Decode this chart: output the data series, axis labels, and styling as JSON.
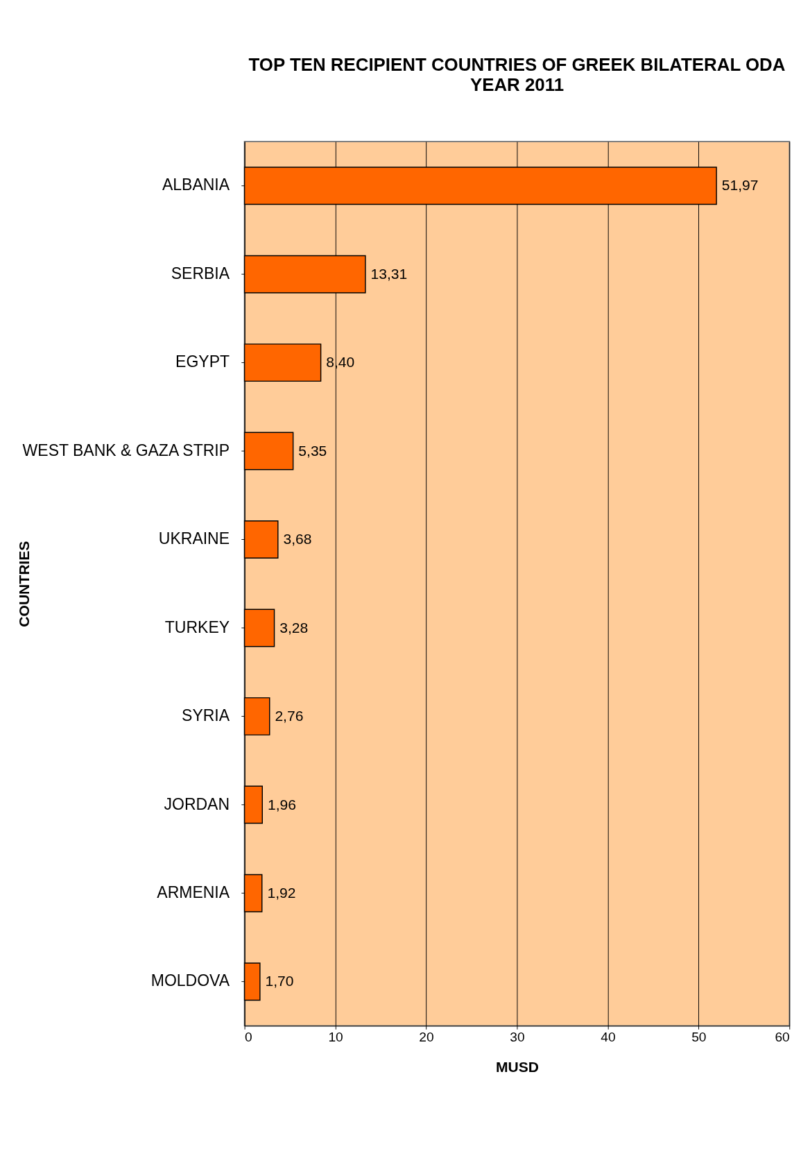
{
  "chart_data": {
    "type": "bar",
    "orientation": "horizontal",
    "title": "TOP TEN RECIPIENT COUNTRIES OF GREEK BILATERAL ODA",
    "subtitle": "YEAR 2011",
    "xlabel": "MUSD",
    "ylabel": "COUNTRIES",
    "categories": [
      "ALBANIA",
      "SERBIA",
      "EGYPT",
      "WEST BANK & GAZA STRIP",
      "UKRAINE",
      "TURKEY",
      "SYRIA",
      "JORDAN",
      "ARMENIA",
      "MOLDOVA"
    ],
    "values": [
      51.97,
      13.31,
      8.4,
      5.35,
      3.68,
      3.28,
      2.76,
      1.96,
      1.92,
      1.7
    ],
    "value_labels": [
      "51,97",
      "13,31",
      "8,40",
      "5,35",
      "3,68",
      "3,28",
      "2,76",
      "1,96",
      "1,92",
      "1,70"
    ],
    "color": "#ff6600",
    "xlim": [
      0,
      60
    ],
    "xticks": [
      0,
      10,
      20,
      30,
      40,
      50,
      60
    ],
    "grid": "x"
  }
}
